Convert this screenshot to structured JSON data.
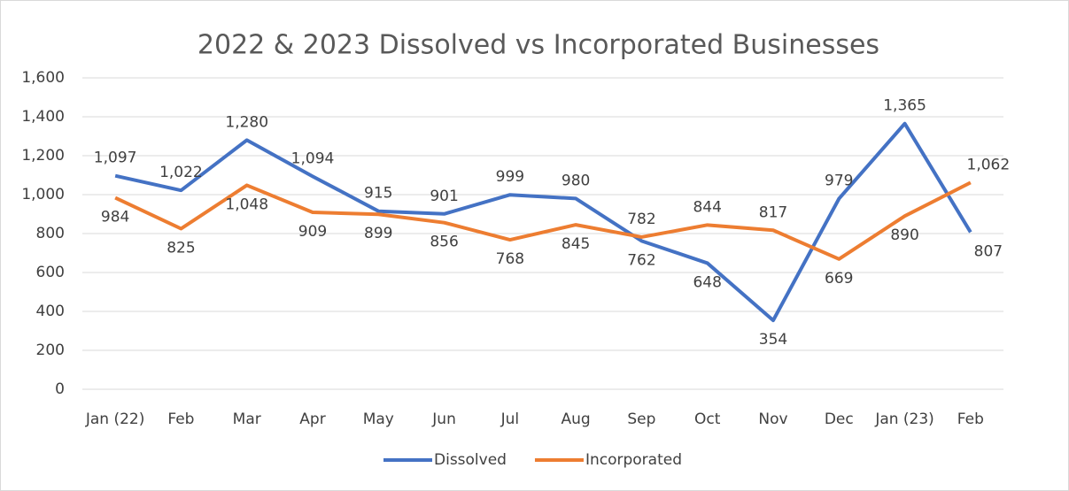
{
  "chart_data": {
    "type": "line",
    "title": "2022 & 2023 Dissolved vs Incorporated Businesses",
    "categories": [
      "Jan (22)",
      "Feb",
      "Mar",
      "Apr",
      "May",
      "Jun",
      "Jul",
      "Aug",
      "Sep",
      "Oct",
      "Nov",
      "Dec",
      "Jan (23)",
      "Feb"
    ],
    "series": [
      {
        "name": "Dissolved",
        "color": "#4472c4",
        "values": [
          1097,
          1022,
          1280,
          1094,
          915,
          901,
          999,
          980,
          762,
          648,
          354,
          979,
          1365,
          807
        ],
        "value_labels": [
          "1,097",
          "1,022",
          "1,280",
          "1,094",
          "915",
          "901",
          "999",
          "980",
          "762",
          "648",
          "354",
          "979",
          "1,365",
          "807"
        ]
      },
      {
        "name": "Incorporated",
        "color": "#ed7d31",
        "values": [
          984,
          825,
          1048,
          909,
          899,
          856,
          768,
          845,
          782,
          844,
          817,
          669,
          890,
          1062
        ],
        "value_labels": [
          "984",
          "825",
          "1,048",
          "909",
          "899",
          "856",
          "768",
          "845",
          "782",
          "844",
          "817",
          "669",
          "890",
          "1,062"
        ]
      }
    ],
    "ylim": [
      0,
      1600
    ],
    "yticks": [
      0,
      200,
      400,
      600,
      800,
      {
        "value": 1000,
        "label": "1,000"
      },
      {
        "value": 1200,
        "label": "1,200"
      },
      {
        "value": 1400,
        "label": "1,400"
      },
      {
        "value": 1600,
        "label": "1,600"
      }
    ],
    "grid": true,
    "legend": "bottom"
  }
}
